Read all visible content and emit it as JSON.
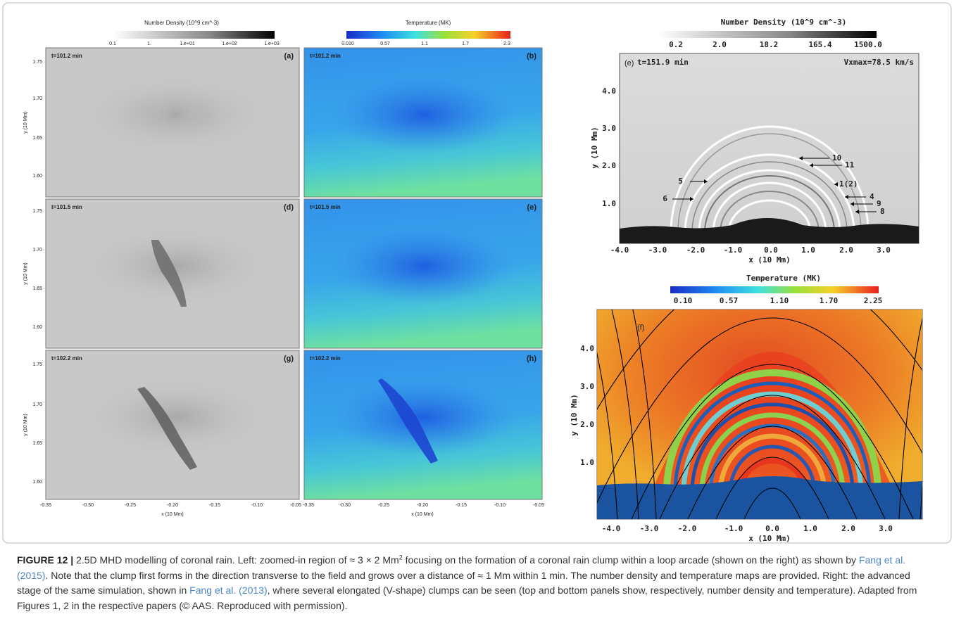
{
  "left_figure": {
    "density_colorbar": {
      "title": "Number Density  (10^9 cm^-3)",
      "ticks": [
        "0.1",
        "1.",
        "1.e+01",
        "1.e+02",
        "1.e+03"
      ]
    },
    "temperature_colorbar": {
      "title": "Temperature (MK)",
      "ticks": [
        "0.010",
        "0.57",
        "1.1",
        "1.7",
        "2.3"
      ]
    },
    "panels": [
      {
        "time": "t=101.2 min",
        "label": "(a)"
      },
      {
        "time": "t=101.2 min",
        "label": "(b)"
      },
      {
        "time": "t=101.5 min",
        "label": "(d)"
      },
      {
        "time": "t=101.5 min",
        "label": "(e)"
      },
      {
        "time": "t=102.2 min",
        "label": "(g)"
      },
      {
        "time": "t=102.2 min",
        "label": "(h)"
      }
    ],
    "y_label": "y (10 Mm)",
    "y_ticks": [
      "1.75",
      "1.70",
      "1.65",
      "1.60"
    ],
    "x_label": "x (10 Mm)",
    "x_ticks": [
      "-0.35",
      "-0.30",
      "-0.25",
      "-0.20",
      "-0.15",
      "-0.10",
      "-0.05"
    ]
  },
  "right_top": {
    "colorbar": {
      "title": "Number Density (10^9 cm^-3)",
      "ticks": [
        "0.2",
        "2.0",
        "18.2",
        "165.4",
        "1500.0"
      ]
    },
    "label": "(e)",
    "time": "t=151.9 min",
    "vmax": "Vxmax=78.5 km/s",
    "y_label": "y (10 Mm)",
    "y_ticks": [
      "4.0",
      "3.0",
      "2.0",
      "1.0"
    ],
    "x_label": "x (10 Mm)",
    "x_ticks": [
      "-4.0",
      "-3.0",
      "-2.0",
      "-1.0",
      "0.0",
      "1.0",
      "2.0",
      "3.0"
    ],
    "annotations": [
      "5",
      "6",
      "10",
      "11",
      "1(2)",
      "4",
      "9",
      "8"
    ]
  },
  "right_bottom": {
    "colorbar": {
      "title": "Temperature   (MK)",
      "ticks": [
        "0.10",
        "0.57",
        "1.10",
        "1.70",
        "2.25"
      ]
    },
    "label": "(f)",
    "y_label": "y (10 Mm)",
    "y_ticks": [
      "4.0",
      "3.0",
      "2.0",
      "1.0"
    ],
    "x_label": "x (10 Mm)",
    "x_ticks": [
      "-4.0",
      "-3.0",
      "-2.0",
      "-1.0",
      "0.0",
      "1.0",
      "2.0",
      "3.0"
    ]
  },
  "caption": {
    "label": "FIGURE 12 |",
    "text0": "2.5D MHD modelling of coronal rain. Left: zoomed-in region of ≈ 3 × 2 Mm",
    "sup": "2",
    "text1": "focusing on the formation of a coronal rain clump within a loop arcade (shown on the right) as shown by",
    "ref1": "Fang et al. (2015)",
    "text2": ". Note that the clump first forms in the direction transverse to the field and grows over a distance of ≈ 1 Mm within 1 min. The number density and temperature maps are provided. Right: the advanced stage of the same simulation, shown in",
    "ref2": "Fang et al. (2013)",
    "text3": ", where several elongated (V-shape) clumps can be seen (top and bottom panels show, respectively, number density and temperature). Adapted from Figures 1, 2 in the respective papers (© AAS. Reproduced with permission)."
  }
}
